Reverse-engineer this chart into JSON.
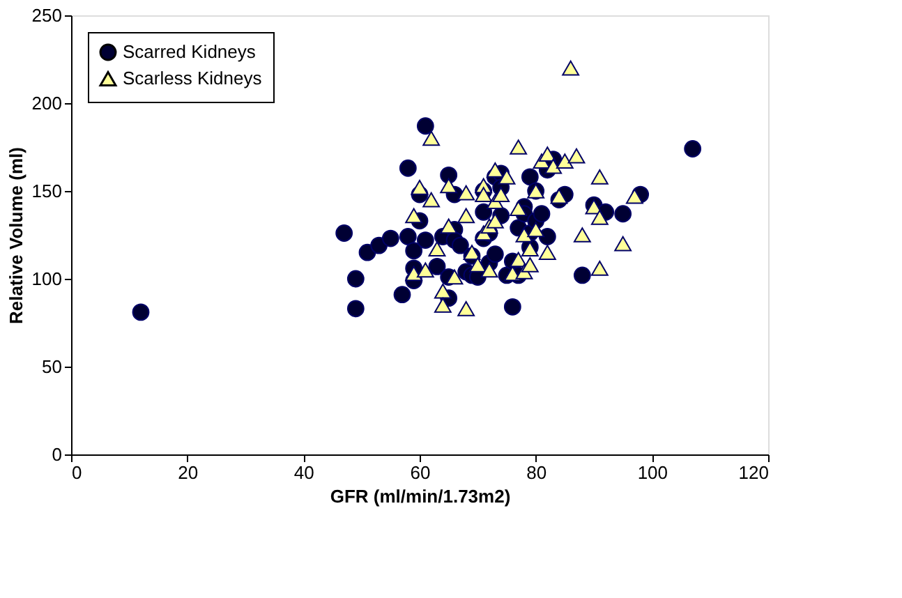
{
  "chart_data": {
    "type": "scatter",
    "xlabel": "GFR (ml/min/1.73m2)",
    "ylabel": "Relative Volume (ml)",
    "xlim": [
      0,
      120
    ],
    "xticks": [
      0,
      20,
      40,
      60,
      80,
      100,
      120
    ],
    "ylim": [
      0,
      250
    ],
    "yticks": [
      0,
      50,
      100,
      150,
      200,
      250
    ],
    "grid": false,
    "legend": "top left",
    "series": [
      {
        "name": "Scarred Kidneys",
        "color": "#000033",
        "marker": "circle",
        "x": [
          12,
          47,
          49,
          49,
          51,
          53,
          55,
          57,
          58,
          58,
          59,
          59,
          59,
          60,
          60,
          61,
          61,
          63,
          64,
          65,
          65,
          65,
          66,
          66,
          66,
          67,
          68,
          69,
          69,
          70,
          71,
          71,
          71,
          72,
          72,
          73,
          73,
          74,
          74,
          74,
          75,
          76,
          76,
          77,
          77,
          78,
          78,
          79,
          79,
          79,
          80,
          80,
          81,
          82,
          82,
          83,
          84,
          85,
          88,
          90,
          92,
          95,
          98,
          107
        ],
        "values": [
          81,
          126,
          100,
          83,
          115,
          119,
          123,
          91,
          163,
          124,
          116,
          106,
          99,
          148,
          133,
          187,
          122,
          107,
          124,
          89,
          101,
          159,
          148,
          128,
          122,
          119,
          104,
          102,
          113,
          101,
          138,
          150,
          123,
          126,
          109,
          158,
          114,
          160,
          152,
          136,
          102,
          110,
          84,
          102,
          129,
          141,
          137,
          126,
          118,
          158,
          150,
          133,
          137,
          124,
          162,
          168,
          145,
          148,
          102,
          142,
          138,
          137,
          148,
          174
        ]
      },
      {
        "name": "Scarless Kidneys",
        "color": "#ffff99",
        "marker": "triangle",
        "x": [
          59,
          59,
          60,
          61,
          62,
          62,
          63,
          64,
          64,
          65,
          65,
          66,
          68,
          68,
          68,
          69,
          70,
          71,
          71,
          71,
          72,
          72,
          73,
          73,
          73,
          74,
          75,
          76,
          77,
          77,
          77,
          78,
          78,
          79,
          79,
          80,
          80,
          81,
          82,
          82,
          83,
          84,
          85,
          86,
          87,
          88,
          90,
          91,
          91,
          91,
          95,
          97
        ],
        "values": [
          136,
          103,
          152,
          105,
          145,
          180,
          117,
          93,
          85,
          130,
          153,
          101,
          149,
          136,
          83,
          115,
          108,
          153,
          148,
          126,
          130,
          105,
          133,
          144,
          162,
          148,
          158,
          103,
          175,
          140,
          111,
          125,
          104,
          117,
          108,
          128,
          150,
          167,
          171,
          115,
          164,
          147,
          167,
          220,
          170,
          125,
          141,
          135,
          158,
          106,
          120,
          147
        ]
      }
    ]
  }
}
